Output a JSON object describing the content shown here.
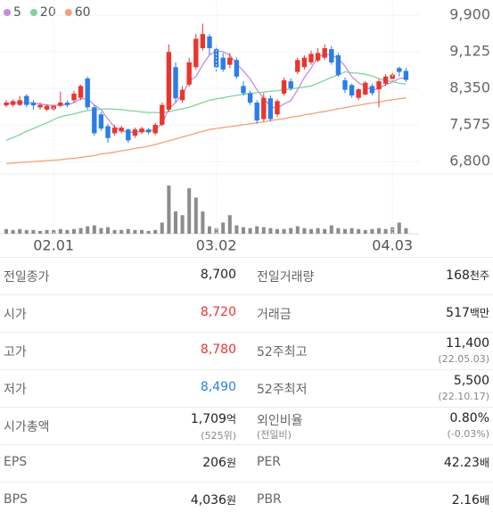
{
  "chart_data": {
    "type": "candlestick",
    "categories": [
      null,
      null,
      null,
      null,
      null,
      null,
      null,
      "02.01",
      null,
      null,
      null,
      null,
      null,
      null,
      null,
      null,
      null,
      null,
      null,
      null,
      null,
      null,
      null,
      null,
      null,
      null,
      null,
      null,
      null,
      null,
      null,
      "03.02",
      null,
      null,
      null,
      null,
      null,
      null,
      null,
      null,
      null,
      null,
      null,
      null,
      null,
      null,
      null,
      null,
      null,
      null,
      null,
      null,
      null,
      null,
      null,
      null,
      null,
      "04.03",
      null,
      null
    ],
    "open": [
      7990,
      8000,
      8000,
      8190,
      8050,
      7950,
      7900,
      7910,
      7980,
      8050,
      8100,
      8150,
      8560,
      7950,
      7800,
      7550,
      7400,
      7440,
      7480,
      7350,
      7420,
      7480,
      7400,
      7580,
      7900,
      8800,
      8100,
      8430,
      8800,
      9200,
      9450,
      9180,
      9000,
      8850,
      8950,
      8400,
      8250,
      8050,
      7700,
      8140,
      7800,
      8240,
      8500,
      8700,
      8800,
      8900,
      8940,
      9000,
      9180,
      9050,
      8520,
      8420,
      8150,
      8220,
      8400,
      8330,
      8450,
      8550,
      8780,
      8720
    ],
    "high": [
      8100,
      8120,
      8190,
      8230,
      8100,
      8050,
      8020,
      8020,
      8280,
      8100,
      8300,
      8430,
      8600,
      8000,
      7850,
      7600,
      7580,
      7560,
      7500,
      7520,
      7540,
      7510,
      7620,
      8050,
      9280,
      8900,
      8400,
      9000,
      9500,
      9720,
      9500,
      9250,
      9100,
      9100,
      9000,
      8500,
      8300,
      8100,
      8250,
      8200,
      8120,
      8580,
      8560,
      9000,
      9050,
      9150,
      9200,
      9280,
      9250,
      9100,
      8580,
      8450,
      8350,
      8500,
      8450,
      8550,
      8650,
      8700,
      8810,
      8780
    ],
    "low": [
      7950,
      7960,
      7980,
      7950,
      7900,
      7900,
      7870,
      7880,
      7950,
      7950,
      8050,
      8100,
      7900,
      7350,
      7450,
      7200,
      7350,
      7400,
      7200,
      7300,
      7380,
      7380,
      7360,
      7550,
      7850,
      8050,
      8050,
      8380,
      8750,
      9150,
      9050,
      8700,
      8700,
      8780,
      8550,
      8200,
      8000,
      7600,
      7650,
      7650,
      7750,
      8200,
      8300,
      8650,
      8750,
      8850,
      8900,
      8950,
      8850,
      8600,
      8250,
      8150,
      8100,
      8200,
      8200,
      7950,
      8400,
      8500,
      8600,
      8490
    ],
    "close": [
      8050,
      8080,
      8100,
      8000,
      7990,
      8000,
      7980,
      7980,
      8050,
      8000,
      8240,
      8400,
      7950,
      7400,
      7500,
      7300,
      7520,
      7520,
      7250,
      7480,
      7500,
      7420,
      7580,
      8000,
      9120,
      8140,
      8320,
      8900,
      9400,
      9500,
      9200,
      8800,
      8750,
      9000,
      8600,
      8250,
      8050,
      7670,
      8150,
      7700,
      8080,
      8520,
      8350,
      8950,
      9000,
      9080,
      9100,
      9200,
      8900,
      8630,
      8320,
      8200,
      8330,
      8470,
      8250,
      8500,
      8600,
      8640,
      8700,
      8530
    ],
    "lines": [
      {
        "name": "5",
        "color": "#c88be0",
        "values": [
          8030,
          8040,
          8050,
          8050,
          8040,
          8020,
          8000,
          7990,
          8000,
          8000,
          8050,
          8130,
          8130,
          8000,
          7900,
          7700,
          7530,
          7450,
          7420,
          7420,
          7450,
          7440,
          7480,
          7600,
          7920,
          8050,
          8220,
          8500,
          8600,
          8850,
          9060,
          9140,
          9130,
          9050,
          8870,
          8720,
          8550,
          8320,
          8140,
          7960,
          7930,
          8020,
          8090,
          8320,
          8580,
          8780,
          9020,
          9070,
          9060,
          8980,
          8820,
          8600,
          8470,
          8390,
          8310,
          8350,
          8430,
          8480,
          8560,
          8570
        ]
      },
      {
        "name": "20",
        "color": "#7fd39a",
        "values": [
          7250,
          7310,
          7370,
          7440,
          7500,
          7560,
          7620,
          7690,
          7750,
          7780,
          7810,
          7850,
          7880,
          7890,
          7910,
          7920,
          7910,
          7900,
          7880,
          7870,
          7850,
          7840,
          7840,
          7830,
          7860,
          7890,
          7920,
          7950,
          8000,
          8050,
          8100,
          8130,
          8150,
          8180,
          8200,
          8230,
          8240,
          8260,
          8270,
          8290,
          8300,
          8320,
          8340,
          8360,
          8380,
          8400,
          8460,
          8520,
          8580,
          8640,
          8700,
          8680,
          8670,
          8650,
          8610,
          8560,
          8520,
          8490,
          8460,
          8440
        ]
      },
      {
        "name": "60",
        "color": "#f4a07a",
        "values": [
          6760,
          6770,
          6780,
          6790,
          6800,
          6810,
          6820,
          6830,
          6840,
          6860,
          6870,
          6890,
          6910,
          6930,
          6960,
          6980,
          7000,
          7030,
          7050,
          7080,
          7100,
          7130,
          7160,
          7200,
          7240,
          7280,
          7320,
          7360,
          7400,
          7440,
          7480,
          7500,
          7520,
          7540,
          7560,
          7580,
          7600,
          7620,
          7640,
          7670,
          7690,
          7710,
          7740,
          7760,
          7790,
          7810,
          7840,
          7860,
          7890,
          7920,
          7940,
          7970,
          7990,
          8020,
          8040,
          8060,
          8090,
          8110,
          8130,
          8150
        ]
      }
    ],
    "volume": [
      5,
      4,
      5,
      4,
      4,
      3,
      4,
      4,
      5,
      4,
      5,
      6,
      8,
      9,
      6,
      7,
      4,
      4,
      5,
      4,
      4,
      3,
      4,
      12,
      52,
      24,
      20,
      49,
      39,
      24,
      8,
      6,
      12,
      20,
      9,
      7,
      6,
      8,
      7,
      6,
      5,
      5,
      6,
      8,
      6,
      5,
      6,
      5,
      9,
      6,
      5,
      6,
      5,
      4,
      5,
      6,
      5,
      7,
      12,
      6
    ],
    "up_color": "#e8362e",
    "down_color": "#2a7ee6",
    "volume_color": "#8c8c8c",
    "ylim": [
      6540,
      10220
    ],
    "yticks": [
      {
        "value": 9900,
        "label": "9,900"
      },
      {
        "value": 9125,
        "label": "9,125"
      },
      {
        "value": 8350,
        "label": "8,350"
      },
      {
        "value": 7575,
        "label": "7,575"
      },
      {
        "value": 6800,
        "label": "6,800"
      }
    ]
  },
  "table": {
    "rows": [
      [
        {
          "label": "전일종가",
          "value": "8,700"
        },
        {
          "label": "전일거래량",
          "value": "168",
          "unit": "천주"
        }
      ],
      [
        {
          "label": "시가",
          "value": "8,720",
          "color": "#e8362e"
        },
        {
          "label": "거래금",
          "value": "517",
          "unit": "백만"
        }
      ],
      [
        {
          "label": "고가",
          "value": "8,780",
          "color": "#e8362e"
        },
        {
          "label": "52주최고",
          "value": "11,400",
          "sub": "(22.05.03)"
        }
      ],
      [
        {
          "label": "저가",
          "value": "8,490",
          "color": "#2a7ee6"
        },
        {
          "label": "52주최저",
          "value": "5,500",
          "sub": "(22.10.17)"
        }
      ],
      [
        {
          "label": "시가총액",
          "value": "1,709",
          "unit": "억",
          "sub": "(525위)"
        },
        {
          "label": "외인비율",
          "label_sub": "(전일비)",
          "value": "0.80%",
          "sub": "(-0.03%)"
        }
      ],
      [
        {
          "label": "EPS",
          "value": "206",
          "unit": "원"
        },
        {
          "label": "PER",
          "value": "42.23",
          "unit": "배"
        }
      ],
      [
        {
          "label": "BPS",
          "value": "4,036",
          "unit": "원"
        },
        {
          "label": "PBR",
          "value": "2.16",
          "unit": "배"
        }
      ]
    ]
  }
}
